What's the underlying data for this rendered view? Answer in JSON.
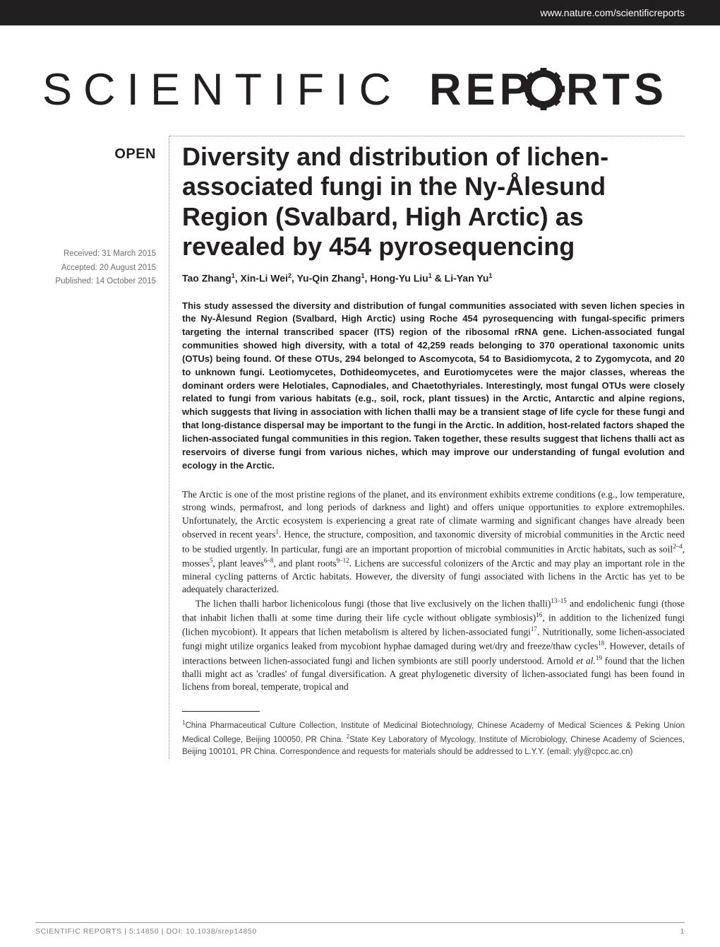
{
  "header": {
    "url": "www.nature.com/scientificreports",
    "background_color": "#231f20",
    "text_color": "#ffffff"
  },
  "journal": {
    "name": "SCIENTIFIC REPORTS",
    "logo_color": "#231f20"
  },
  "badge": {
    "open": "OPEN"
  },
  "dates": {
    "received": "Received: 31 March 2015",
    "accepted": "Accepted: 20 August 2015",
    "published": "Published: 14 October 2015"
  },
  "article": {
    "title": "Diversity and distribution of lichen-associated fungi in the Ny-Ålesund Region (Svalbard, High Arctic) as revealed by 454 pyrosequencing",
    "authors_html": "Tao Zhang<sup>1</sup>, Xin-Li Wei<sup>2</sup>, Yu-Qin Zhang<sup>1</sup>, Hong-Yu Liu<sup>1</sup> & Li-Yan Yu<sup>1</sup>",
    "abstract": "This study assessed the diversity and distribution of fungal communities associated with seven lichen species in the Ny-Ålesund Region (Svalbard, High Arctic) using Roche 454 pyrosequencing with fungal-specific primers targeting the internal transcribed spacer (ITS) region of the ribosomal rRNA gene. Lichen-associated fungal communities showed high diversity, with a total of 42,259 reads belonging to 370 operational taxonomic units (OTUs) being found. Of these OTUs, 294 belonged to Ascomycota, 54 to Basidiomycota, 2 to Zygomycota, and 20 to unknown fungi. Leotiomycetes, Dothideomycetes, and Eurotiomycetes were the major classes, whereas the dominant orders were Helotiales, Capnodiales, and Chaetothyriales. Interestingly, most fungal OTUs were closely related to fungi from various habitats (e.g., soil, rock, plant tissues) in the Arctic, Antarctic and alpine regions, which suggests that living in association with lichen thalli may be a transient stage of life cycle for these fungi and that long-distance dispersal may be important to the fungi in the Arctic. In addition, host-related factors shaped the lichen-associated fungal communities in this region. Taken together, these results suggest that lichens thalli act as reservoirs of diverse fungi from various niches, which may improve our understanding of fungal evolution and ecology in the Arctic.",
    "paragraphs": [
      "The Arctic is one of the most pristine regions of the planet, and its environment exhibits extreme conditions (e.g., low temperature, strong winds, permafrost, and long periods of darkness and light) and offers unique opportunities to explore extremophiles. Unfortunately, the Arctic ecosystem is experiencing a great rate of climate warming and significant changes have already been observed in recent years<sup>1</sup>. Hence, the structure, composition, and taxonomic diversity of microbial communities in the Arctic need to be studied urgently. In particular, fungi are an important proportion of microbial communities in Arctic habitats, such as soil<sup>2–4</sup>, mosses<sup>5</sup>, plant leaves<sup>6–8</sup>, and plant roots<sup>9–12</sup>. Lichens are successful colonizers of the Arctic and may play an important role in the mineral cycling patterns of Arctic habitats. However, the diversity of fungi associated with lichens in the Arctic has yet to be adequately characterized.",
      "The lichen thalli harbor lichenicolous fungi (those that live exclusively on the lichen thalli)<sup>13–15</sup> and endolichenic fungi (those that inhabit lichen thalli at some time during their life cycle without obligate symbiosis)<sup>16</sup>, in addition to the lichenized fungi (lichen mycobiont). It appears that lichen metabolism is altered by lichen-associated fungi<sup>17</sup>. Nutritionally, some lichen-associated fungi might utilize organics leaked from mycobiont hyphae damaged during wet/dry and freeze/thaw cycles<sup>18</sup>. However, details of interactions between lichen-associated fungi and lichen symbionts are still poorly understood. Arnold <em>et al.</em><sup>19</sup> found that the lichen thalli might act as 'cradles' of fungal diversification. A great phylogenetic diversity of lichen-associated fungi has been found in lichens from boreal, temperate, tropical and"
    ],
    "affiliations_html": "<sup>1</sup>China Pharmaceutical Culture Collection, Institute of Medicinal Biotechnology, Chinese Academy of Medical Sciences & Peking Union Medical College, Beijing 100050, PR China. <sup>2</sup>State Key Laboratory of Mycology, Institute of Microbiology, Chinese Academy of Sciences, Beijing 100101, PR China. Correspondence and requests for materials should be addressed to L.Y.Y. (email: yly@cpcc.ac.cn)"
  },
  "footer": {
    "citation": "SCIENTIFIC REPORTS | 5:14850 | DOI: 10.1038/srep14850",
    "page": "1"
  },
  "typography": {
    "title_fontsize": 36,
    "title_weight": 600,
    "authors_fontsize": 14,
    "abstract_fontsize": 13,
    "body_fontsize": 13.5,
    "affil_fontsize": 11.5,
    "footer_fontsize": 10.5
  },
  "colors": {
    "text": "#231f20",
    "muted": "#6d6e71",
    "footer_text": "#808285",
    "background": "#ffffff",
    "dotted_border": "#888888"
  }
}
